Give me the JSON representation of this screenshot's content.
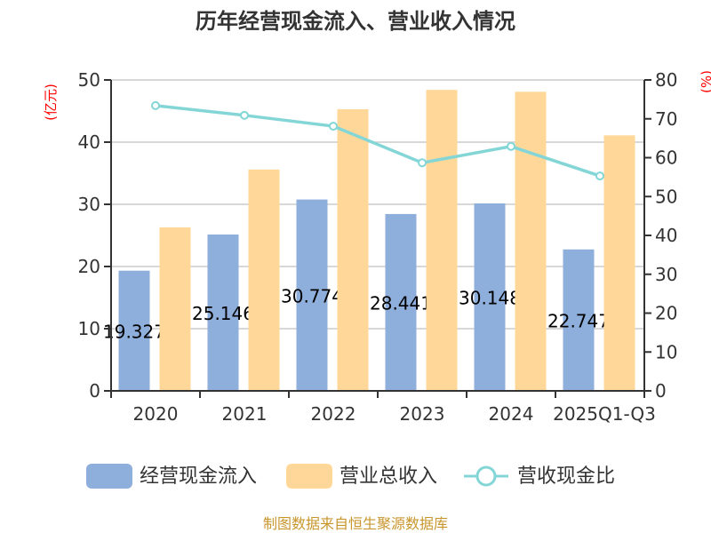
{
  "chart_data": {
    "type": "bar",
    "title": "历年经营现金流入、营业收入情况",
    "categories": [
      "2020",
      "2021",
      "2022",
      "2023",
      "2024",
      "2025Q1-Q3"
    ],
    "y_left": {
      "label": "(亿元)",
      "ylim": [
        0,
        50
      ],
      "ticks": [
        0,
        10,
        20,
        30,
        40,
        50
      ]
    },
    "y_right": {
      "label": "(%)",
      "ylim": [
        0,
        80
      ],
      "ticks": [
        0,
        10,
        20,
        30,
        40,
        50,
        60,
        70,
        80
      ]
    },
    "grid": true,
    "legend_position": "bottom",
    "series": [
      {
        "name": "经营现金流入",
        "type": "bar",
        "axis": "left",
        "color": "#8eaedb",
        "values": [
          19.327,
          25.146,
          30.774,
          28.441,
          30.148,
          22.747
        ],
        "labels": [
          "19.327",
          "25.146",
          "30.774",
          "28.441",
          "30.148",
          "22.747"
        ]
      },
      {
        "name": "营业总收入",
        "type": "bar",
        "axis": "left",
        "color": "#ffd899",
        "values": [
          26.3,
          35.6,
          45.3,
          48.4,
          48.1,
          41.1
        ]
      },
      {
        "name": "营收现金比",
        "type": "line",
        "axis": "right",
        "color": "#84d6d6",
        "values": [
          73.4,
          70.9,
          68.1,
          58.7,
          62.9,
          55.3
        ]
      }
    ]
  },
  "footer": "制图数据来自恒生聚源数据库"
}
